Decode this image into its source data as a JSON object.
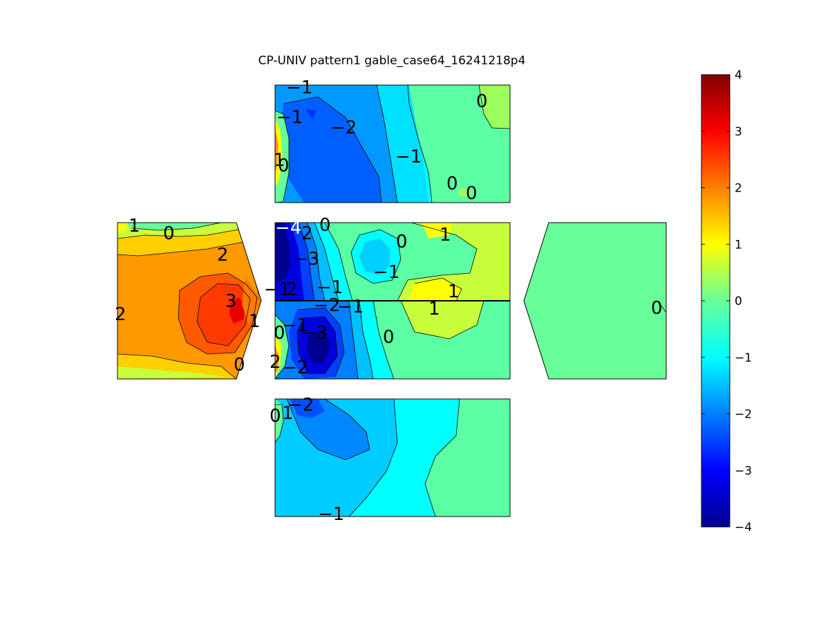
{
  "chart_data": {
    "type": "contour",
    "title": "CP-UNIV pattern1 gable_case64_16241218p4",
    "colormap": "jet",
    "clim": [
      -4,
      4
    ],
    "colorbar": {
      "ticks": [
        "4",
        "3",
        "2",
        "1",
        "0",
        "−1",
        "−2",
        "−3",
        "−4"
      ],
      "tick_values": [
        4,
        3,
        2,
        1,
        0,
        -1,
        -2,
        -3,
        -4
      ]
    },
    "panels": [
      {
        "name": "roof-top",
        "contour_labels": [
          "−1",
          "−1",
          "−2",
          "−1",
          "0",
          "1",
          "0",
          "0",
          "0"
        ]
      },
      {
        "name": "gable-left",
        "contour_labels": [
          "1",
          "0",
          "2",
          "3",
          "2",
          "1",
          "0"
        ]
      },
      {
        "name": "wall-middle-upper",
        "contour_labels": [
          "−4",
          "2",
          "0",
          "−3",
          "0",
          "1",
          "−1",
          "−1",
          "2",
          "−1",
          "1"
        ]
      },
      {
        "name": "wall-middle-lower",
        "contour_labels": [
          "−2",
          "−1",
          "1",
          "−1",
          "0",
          "−3",
          "0",
          "2",
          "−2"
        ]
      },
      {
        "name": "gable-right",
        "contour_labels": [
          "0"
        ]
      },
      {
        "name": "roof-bottom",
        "contour_labels": [
          "−2",
          "0",
          "1",
          "−1"
        ]
      }
    ]
  }
}
